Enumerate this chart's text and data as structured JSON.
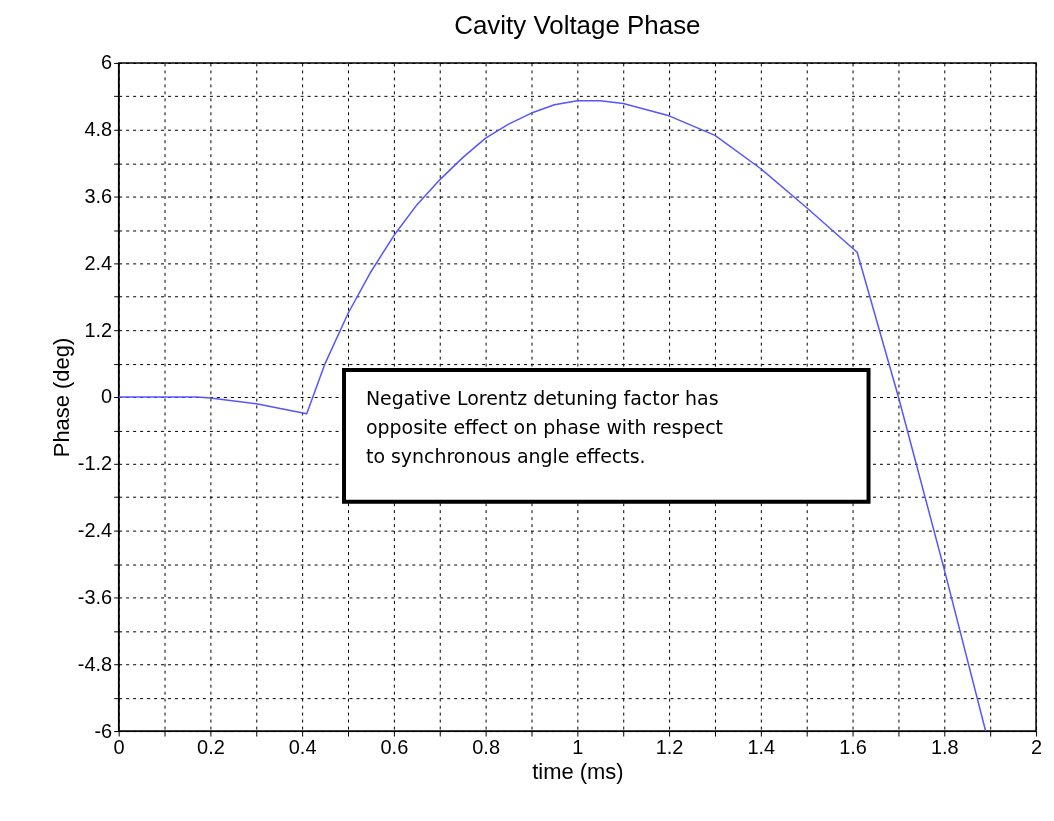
{
  "chart_data": {
    "type": "line",
    "title": "Cavity Voltage Phase",
    "xlabel": "time (ms)",
    "ylabel": "Phase (deg)",
    "x": [
      0,
      0.17,
      0.2,
      0.3,
      0.41,
      0.45,
      0.5,
      0.55,
      0.6,
      0.65,
      0.7,
      0.75,
      0.8,
      0.85,
      0.9,
      0.95,
      1.0,
      1.05,
      1.1,
      1.2,
      1.3,
      1.4,
      1.5,
      1.61,
      1.7,
      1.8,
      1.89
    ],
    "series": [
      {
        "color": "#5555ff",
        "values": [
          0,
          0,
          -0.02,
          -0.12,
          -0.3,
          0.6,
          1.5,
          2.25,
          2.9,
          3.45,
          3.9,
          4.3,
          4.65,
          4.9,
          5.1,
          5.25,
          5.32,
          5.32,
          5.27,
          5.05,
          4.7,
          4.1,
          3.4,
          2.6,
          0,
          -3.1,
          -6
        ]
      }
    ],
    "xlim": [
      0,
      2
    ],
    "ylim": [
      -6,
      6
    ],
    "xticks": [
      0,
      {
        "value": 0.1,
        "label": null
      },
      0.2,
      {
        "value": 0.3,
        "label": null
      },
      0.4,
      {
        "value": 0.5,
        "label": null
      },
      0.6,
      {
        "value": 0.7,
        "label": null
      },
      0.8,
      {
        "value": 0.9,
        "label": null
      },
      1,
      {
        "value": 1.1,
        "label": null
      },
      1.2,
      {
        "value": 1.3,
        "label": null
      },
      1.4,
      {
        "value": 1.5,
        "label": null
      },
      1.6,
      {
        "value": 1.7,
        "label": null
      },
      1.8,
      {
        "value": 1.9,
        "label": null
      },
      2
    ],
    "yticks": [
      -6,
      {
        "value": -5.4,
        "label": null
      },
      -4.8,
      {
        "value": -4.2,
        "label": null
      },
      -3.6,
      {
        "value": -3.0,
        "label": null
      },
      -2.4,
      {
        "value": -1.8,
        "label": null
      },
      -1.2,
      {
        "value": -0.6,
        "label": null
      },
      0,
      {
        "value": 0.6,
        "label": null
      },
      1.2,
      {
        "value": 1.8,
        "label": null
      },
      2.4,
      {
        "value": 3.0,
        "label": null
      },
      3.6,
      {
        "value": 4.2,
        "label": null
      },
      4.8,
      {
        "value": 5.4,
        "label": null
      },
      6
    ],
    "grid": true,
    "line_style": "solid",
    "marker": "none",
    "legend": false,
    "annotations": [
      "Negative Lorentz detuning factor has\nopposite effect on phase with respect\nto synchronous angle effects."
    ]
  }
}
